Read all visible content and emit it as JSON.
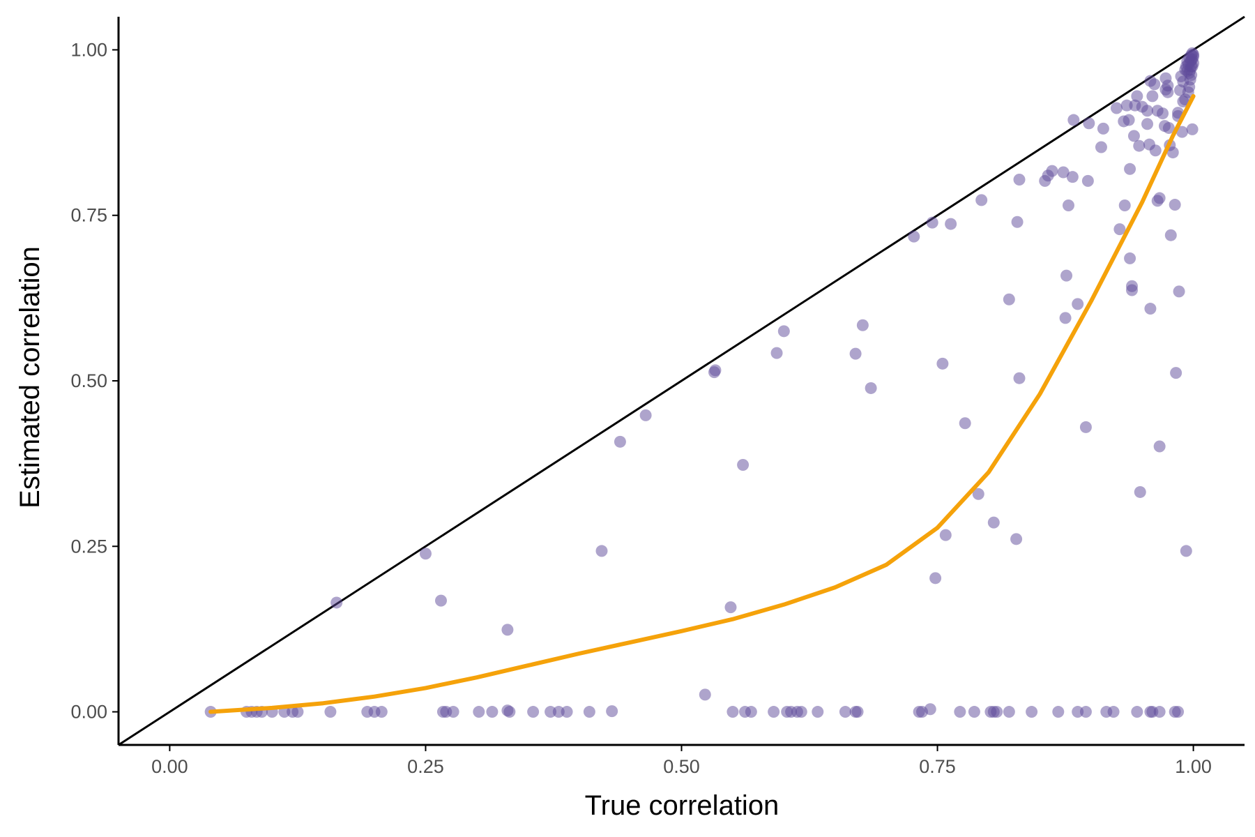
{
  "chart_data": {
    "type": "scatter",
    "title": "",
    "xlabel": "True correlation",
    "ylabel": "Estimated correlation",
    "xlim": [
      -0.05,
      1.05
    ],
    "ylim": [
      -0.05,
      1.05
    ],
    "x_ticks": [
      0.0,
      0.25,
      0.5,
      0.75,
      1.0
    ],
    "x_tick_labels": [
      "0.00",
      "0.25",
      "0.50",
      "0.75",
      "1.00"
    ],
    "y_ticks": [
      0.0,
      0.25,
      0.5,
      0.75,
      1.0
    ],
    "y_tick_labels": [
      "0.00",
      "0.25",
      "0.50",
      "0.75",
      "1.00"
    ],
    "grid": false,
    "legend": "none",
    "colors": {
      "points": "#5e4a9a",
      "smooth": "#f5a20a",
      "identity": "#000000",
      "axis": "#000000",
      "tick_text": "#4d4d4d"
    },
    "identity_line": {
      "slope": 1,
      "intercept": 0
    },
    "series": [
      {
        "type": "scatter",
        "points": [
          [
            0.04,
            0.0
          ],
          [
            0.075,
            0.0
          ],
          [
            0.08,
            0.0
          ],
          [
            0.085,
            0.0
          ],
          [
            0.09,
            0.0
          ],
          [
            0.1,
            0.0
          ],
          [
            0.112,
            0.0
          ],
          [
            0.12,
            0.0
          ],
          [
            0.125,
            0.0
          ],
          [
            0.157,
            0.0
          ],
          [
            0.193,
            0.0
          ],
          [
            0.2,
            0.0
          ],
          [
            0.207,
            0.0
          ],
          [
            0.267,
            0.0
          ],
          [
            0.27,
            0.0
          ],
          [
            0.277,
            0.0
          ],
          [
            0.302,
            0.0
          ],
          [
            0.315,
            0.0
          ],
          [
            0.33,
            0.002
          ],
          [
            0.332,
            0.0
          ],
          [
            0.355,
            0.0
          ],
          [
            0.372,
            0.0
          ],
          [
            0.38,
            0.0
          ],
          [
            0.388,
            0.0
          ],
          [
            0.41,
            0.0
          ],
          [
            0.432,
            0.001
          ],
          [
            0.55,
            0.0
          ],
          [
            0.562,
            0.0
          ],
          [
            0.568,
            0.0
          ],
          [
            0.59,
            0.0
          ],
          [
            0.603,
            0.0
          ],
          [
            0.607,
            0.0
          ],
          [
            0.613,
            0.0
          ],
          [
            0.617,
            0.0
          ],
          [
            0.633,
            0.0
          ],
          [
            0.66,
            0.0
          ],
          [
            0.67,
            0.0
          ],
          [
            0.672,
            0.0
          ],
          [
            0.732,
            0.0
          ],
          [
            0.735,
            0.0
          ],
          [
            0.743,
            0.004
          ],
          [
            0.772,
            0.0
          ],
          [
            0.786,
            0.0
          ],
          [
            0.802,
            0.0
          ],
          [
            0.805,
            0.0
          ],
          [
            0.808,
            0.0
          ],
          [
            0.82,
            0.0
          ],
          [
            0.842,
            0.0
          ],
          [
            0.868,
            0.0
          ],
          [
            0.887,
            0.0
          ],
          [
            0.895,
            0.0
          ],
          [
            0.915,
            0.0
          ],
          [
            0.922,
            0.0
          ],
          [
            0.945,
            0.0
          ],
          [
            0.958,
            0.0
          ],
          [
            0.96,
            0.0
          ],
          [
            0.967,
            0.0
          ],
          [
            0.982,
            0.0
          ],
          [
            0.985,
            0.0
          ],
          [
            0.523,
            0.026
          ],
          [
            0.163,
            0.165
          ],
          [
            0.25,
            0.239
          ],
          [
            0.265,
            0.168
          ],
          [
            0.33,
            0.124
          ],
          [
            0.422,
            0.243
          ],
          [
            0.44,
            0.408
          ],
          [
            0.465,
            0.448
          ],
          [
            0.532,
            0.513
          ],
          [
            0.533,
            0.516
          ],
          [
            0.548,
            0.158
          ],
          [
            0.56,
            0.373
          ],
          [
            0.593,
            0.542
          ],
          [
            0.6,
            0.575
          ],
          [
            0.67,
            0.541
          ],
          [
            0.677,
            0.584
          ],
          [
            0.685,
            0.489
          ],
          [
            0.727,
            0.718
          ],
          [
            0.745,
            0.739
          ],
          [
            0.748,
            0.202
          ],
          [
            0.755,
            0.526
          ],
          [
            0.758,
            0.267
          ],
          [
            0.763,
            0.737
          ],
          [
            0.777,
            0.436
          ],
          [
            0.79,
            0.329
          ],
          [
            0.793,
            0.773
          ],
          [
            0.805,
            0.286
          ],
          [
            0.82,
            0.623
          ],
          [
            0.827,
            0.261
          ],
          [
            0.828,
            0.74
          ],
          [
            0.83,
            0.504
          ],
          [
            0.83,
            0.804
          ],
          [
            0.855,
            0.802
          ],
          [
            0.858,
            0.81
          ],
          [
            0.862,
            0.817
          ],
          [
            0.873,
            0.815
          ],
          [
            0.875,
            0.595
          ],
          [
            0.876,
            0.659
          ],
          [
            0.878,
            0.765
          ],
          [
            0.882,
            0.808
          ],
          [
            0.883,
            0.894
          ],
          [
            0.887,
            0.616
          ],
          [
            0.895,
            0.43
          ],
          [
            0.897,
            0.802
          ],
          [
            0.898,
            0.889
          ],
          [
            0.91,
            0.853
          ],
          [
            0.912,
            0.881
          ],
          [
            0.925,
            0.912
          ],
          [
            0.928,
            0.729
          ],
          [
            0.932,
            0.892
          ],
          [
            0.933,
            0.765
          ],
          [
            0.935,
            0.916
          ],
          [
            0.937,
            0.894
          ],
          [
            0.938,
            0.685
          ],
          [
            0.938,
            0.82
          ],
          [
            0.94,
            0.643
          ],
          [
            0.94,
            0.637
          ],
          [
            0.942,
            0.87
          ],
          [
            0.943,
            0.916
          ],
          [
            0.945,
            0.93
          ],
          [
            0.947,
            0.855
          ],
          [
            0.948,
            0.332
          ],
          [
            0.95,
            0.914
          ],
          [
            0.955,
            0.908
          ],
          [
            0.955,
            0.888
          ],
          [
            0.957,
            0.857
          ],
          [
            0.958,
            0.953
          ],
          [
            0.958,
            0.609
          ],
          [
            0.96,
            0.93
          ],
          [
            0.962,
            0.948
          ],
          [
            0.963,
            0.848
          ],
          [
            0.965,
            0.908
          ],
          [
            0.965,
            0.772
          ],
          [
            0.967,
            0.776
          ],
          [
            0.967,
            0.401
          ],
          [
            0.97,
            0.904
          ],
          [
            0.972,
            0.885
          ],
          [
            0.973,
            0.957
          ],
          [
            0.973,
            0.94
          ],
          [
            0.975,
            0.946
          ],
          [
            0.975,
            0.936
          ],
          [
            0.976,
            0.882
          ],
          [
            0.977,
            0.856
          ],
          [
            0.978,
            0.72
          ],
          [
            0.98,
            0.845
          ],
          [
            0.982,
            0.766
          ],
          [
            0.983,
            0.512
          ],
          [
            0.985,
            0.9
          ],
          [
            0.985,
            0.905
          ],
          [
            0.986,
            0.635
          ],
          [
            0.987,
            0.939
          ],
          [
            0.988,
            0.96
          ],
          [
            0.989,
            0.876
          ],
          [
            0.99,
            0.922
          ],
          [
            0.99,
            0.952
          ],
          [
            0.992,
            0.925
          ],
          [
            0.993,
            0.243
          ],
          [
            0.994,
            0.968
          ],
          [
            0.995,
            0.936
          ],
          [
            0.996,
            0.944
          ],
          [
            0.997,
            0.955
          ],
          [
            0.998,
            0.975
          ],
          [
            0.998,
            0.962
          ],
          [
            0.999,
            0.88
          ],
          [
            0.999,
            0.986
          ],
          [
            1.0,
            0.98
          ],
          [
            1.0,
            0.99
          ],
          [
            0.995,
            0.978
          ],
          [
            0.997,
            0.982
          ],
          [
            0.993,
            0.975
          ],
          [
            0.996,
            0.988
          ],
          [
            0.998,
            0.992
          ],
          [
            0.999,
            0.995
          ],
          [
            0.994,
            0.983
          ],
          [
            0.992,
            0.97
          ],
          [
            0.997,
            0.97
          ],
          [
            0.998,
            0.985
          ],
          [
            0.999,
            0.975
          ],
          [
            0.996,
            0.965
          ],
          [
            1.0,
            0.993
          ]
        ]
      },
      {
        "type": "line",
        "points": [
          [
            0.04,
            0.0
          ],
          [
            0.1,
            0.006
          ],
          [
            0.15,
            0.013
          ],
          [
            0.2,
            0.023
          ],
          [
            0.25,
            0.036
          ],
          [
            0.3,
            0.052
          ],
          [
            0.35,
            0.07
          ],
          [
            0.4,
            0.088
          ],
          [
            0.45,
            0.105
          ],
          [
            0.5,
            0.122
          ],
          [
            0.55,
            0.14
          ],
          [
            0.6,
            0.162
          ],
          [
            0.65,
            0.188
          ],
          [
            0.7,
            0.222
          ],
          [
            0.75,
            0.278
          ],
          [
            0.8,
            0.362
          ],
          [
            0.85,
            0.48
          ],
          [
            0.9,
            0.62
          ],
          [
            0.95,
            0.77
          ],
          [
            0.98,
            0.87
          ],
          [
            1.0,
            0.93
          ]
        ]
      }
    ]
  }
}
